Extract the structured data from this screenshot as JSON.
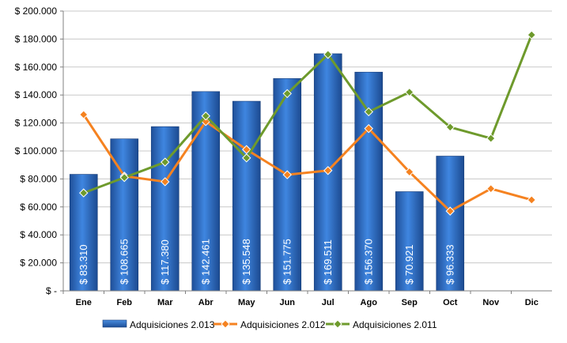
{
  "chart_data": {
    "type": "bar",
    "categories": [
      "Ene",
      "Feb",
      "Mar",
      "Abr",
      "May",
      "Jun",
      "Jul",
      "Ago",
      "Sep",
      "Oct",
      "Nov",
      "Dic"
    ],
    "ylim": [
      0,
      200000
    ],
    "yticks": [
      {
        "value": 0,
        "label": "$ -"
      },
      {
        "value": 20000,
        "label": "$ 20.000"
      },
      {
        "value": 40000,
        "label": "$ 40.000"
      },
      {
        "value": 60000,
        "label": "$ 60.000"
      },
      {
        "value": 80000,
        "label": "$ 80.000"
      },
      {
        "value": 100000,
        "label": "$ 100.000"
      },
      {
        "value": 120000,
        "label": "$ 120.000"
      },
      {
        "value": 140000,
        "label": "$ 140.000"
      },
      {
        "value": 160000,
        "label": "$ 160.000"
      },
      {
        "value": 180000,
        "label": "$ 180.000"
      },
      {
        "value": 200000,
        "label": "$ 200.000"
      }
    ],
    "grid": true,
    "legend_position": "bottom",
    "series": [
      {
        "name": "Adquisiciones 2.013",
        "type": "bar",
        "color": "#2e6cc4",
        "values": [
          83310,
          108665,
          117380,
          142461,
          135548,
          151775,
          169511,
          156370,
          70921,
          96333,
          null,
          null
        ],
        "data_labels": [
          "$ 83.310",
          "$ 108.665",
          "$ 117.380",
          "$ 142.461",
          "$ 135.548",
          "$ 151.775",
          "$ 169.511",
          "$ 156.370",
          "$ 70.921",
          "$ 96.333"
        ]
      },
      {
        "name": "Adquisiciones 2.012",
        "type": "line",
        "color": "#f58220",
        "values": [
          126000,
          82000,
          78000,
          121000,
          101000,
          83000,
          86000,
          116000,
          85000,
          57000,
          73000,
          65000
        ]
      },
      {
        "name": "Adquisiciones 2.011",
        "type": "line",
        "color": "#6e9a2c",
        "values": [
          70000,
          81000,
          92000,
          125000,
          95000,
          141000,
          169000,
          128000,
          142000,
          117000,
          109000,
          183000
        ]
      }
    ]
  }
}
